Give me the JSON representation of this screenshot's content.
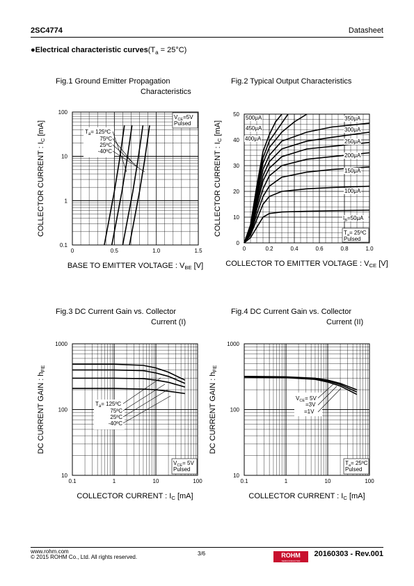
{
  "header": {
    "part": "2SC4774",
    "doc_type": "Datasheet"
  },
  "section": {
    "bullet": "●",
    "title": "Electrical characteristic curves",
    "cond": "(T",
    "cond_sub": "a",
    "cond_rest": " = 25°C)"
  },
  "footer": {
    "url": "www.rohm.com",
    "copyright": "© 2015 ROHM Co., Ltd. All rights reserved.",
    "page": "3/6",
    "revision": "20160303 - Rev.001",
    "logo": "ROHM",
    "logo_sub": "SEMICONDUCTOR"
  },
  "colors": {
    "line": "#000000",
    "grid": "#000000",
    "brand": "#c8102e"
  },
  "chart_data": [
    {
      "id": "fig1",
      "type": "line",
      "title_line1": "Fig.1 Ground Emitter Propagation",
      "title_line2": "Characteristics",
      "xlabel": {
        "pre": "BASE TO EMITTER VOLTAGE : V",
        "sub": "BE",
        "post": " [V]"
      },
      "ylabel": {
        "pre": "COLLECTOR CURRENT : I",
        "sub": "C",
        "post": " [mA]"
      },
      "xscale": "linear",
      "yscale": "log",
      "xlim": [
        0,
        1.5
      ],
      "ylim": [
        0.1,
        100
      ],
      "xticks": [
        "0",
        "0.5",
        "1.0",
        "1.5"
      ],
      "yticks": [
        "0.1",
        "1",
        "10",
        "100"
      ],
      "cond_box": [
        "V_CE=5V",
        "Pulsed"
      ],
      "legend_title": "T",
      "legend_title_sub": "a",
      "legend_labels": [
        "= 125ºC",
        "75ºC",
        "25ºC",
        "-40ºC"
      ],
      "series": [
        {
          "name": "125ºC",
          "x": [
            0.38,
            0.44,
            0.5,
            0.56,
            0.62
          ],
          "y": [
            0.1,
            0.4,
            1.6,
            8,
            50
          ]
        },
        {
          "name": "75ºC",
          "x": [
            0.47,
            0.53,
            0.59,
            0.65,
            0.71
          ],
          "y": [
            0.1,
            0.4,
            1.6,
            8,
            50
          ]
        },
        {
          "name": "25ºC",
          "x": [
            0.6,
            0.66,
            0.72,
            0.78,
            0.84
          ],
          "y": [
            0.1,
            0.4,
            1.6,
            8,
            50
          ]
        },
        {
          "name": "-40ºC",
          "x": [
            0.68,
            0.74,
            0.8,
            0.86,
            0.92
          ],
          "y": [
            0.1,
            0.4,
            1.6,
            8,
            50
          ]
        }
      ]
    },
    {
      "id": "fig2",
      "type": "line",
      "title_line1": "Fig.2 Typical Output Characteristics",
      "title_line2": "",
      "xlabel": {
        "pre": "COLLECTOR TO EMITTER VOLTAGE : V",
        "sub": "CE",
        "post": " [V]"
      },
      "ylabel": {
        "pre": "COLLECTOR CURRENT : I",
        "sub": "C",
        "post": " [mA]"
      },
      "xscale": "linear",
      "yscale": "linear",
      "xlim": [
        0,
        1.0
      ],
      "ylim": [
        0,
        50
      ],
      "xticks": [
        "0",
        "0.2",
        "0.4",
        "0.6",
        "0.8",
        "1.0"
      ],
      "yticks": [
        "0",
        "10",
        "20",
        "30",
        "40",
        "50"
      ],
      "cond_box": [
        "T_a= 25ºC",
        "Pulsed"
      ],
      "curve_labels": [
        "I_B=50μA",
        "100μA",
        "150μA",
        "200μA",
        "250μA",
        "300μA",
        "350μA",
        "400μA",
        "450μA",
        "500μA"
      ],
      "series": [
        {
          "name": "50μA",
          "x": [
            0,
            0.05,
            0.1,
            0.15,
            0.2,
            0.3,
            0.5,
            0.7,
            1.0
          ],
          "y": [
            0,
            2,
            6,
            10,
            11.4,
            12,
            12.3,
            12.5,
            12.7
          ]
        },
        {
          "name": "100μA",
          "x": [
            0,
            0.05,
            0.1,
            0.15,
            0.2,
            0.3,
            0.5,
            0.7,
            1.0
          ],
          "y": [
            0,
            3,
            9,
            15,
            18,
            20,
            21,
            21.5,
            22
          ]
        },
        {
          "name": "150μA",
          "x": [
            0,
            0.05,
            0.1,
            0.15,
            0.2,
            0.3,
            0.5,
            0.7,
            1.0
          ],
          "y": [
            0,
            3.5,
            11,
            18,
            22,
            25.5,
            27.5,
            28.5,
            29.5
          ]
        },
        {
          "name": "200μA",
          "x": [
            0,
            0.05,
            0.1,
            0.15,
            0.2,
            0.3,
            0.5,
            0.7,
            1.0
          ],
          "y": [
            0,
            4,
            13,
            21,
            26,
            30,
            32.5,
            33.5,
            35
          ]
        },
        {
          "name": "250μA",
          "x": [
            0,
            0.05,
            0.1,
            0.15,
            0.2,
            0.3,
            0.5,
            0.7,
            1.0
          ],
          "y": [
            0,
            4.5,
            14.5,
            24,
            29,
            33.5,
            36.5,
            37.5,
            39
          ]
        },
        {
          "name": "300μA",
          "x": [
            0,
            0.05,
            0.1,
            0.15,
            0.2,
            0.3,
            0.5,
            0.7,
            1.0
          ],
          "y": [
            0,
            5,
            16,
            26,
            31.5,
            36.5,
            39.5,
            41,
            43
          ]
        },
        {
          "name": "350μA",
          "x": [
            0,
            0.05,
            0.1,
            0.15,
            0.2,
            0.3,
            0.5,
            0.7,
            1.0
          ],
          "y": [
            0,
            5.5,
            17.5,
            28.5,
            34,
            39.5,
            43,
            45,
            46.5
          ]
        },
        {
          "name": "400μA",
          "x": [
            0,
            0.05,
            0.1,
            0.15,
            0.2,
            0.3,
            0.4,
            0.5
          ],
          "y": [
            0,
            6,
            19,
            31,
            37,
            43,
            47,
            50
          ]
        },
        {
          "name": "450μA",
          "x": [
            0,
            0.05,
            0.1,
            0.15,
            0.2,
            0.3,
            0.35
          ],
          "y": [
            0,
            6.5,
            20.5,
            33,
            39.5,
            46.5,
            50
          ]
        },
        {
          "name": "500μA",
          "x": [
            0,
            0.05,
            0.1,
            0.15,
            0.2,
            0.25,
            0.3
          ],
          "y": [
            0,
            7,
            22,
            35.5,
            42,
            47,
            50
          ]
        }
      ]
    },
    {
      "id": "fig3",
      "type": "line",
      "title_line1": "Fig.3 DC Current Gain vs. Collector",
      "title_line2": "Current (I)",
      "xlabel": {
        "pre": "COLLECTOR CURRENT : I",
        "sub": "C",
        "post": " [mA]"
      },
      "ylabel": {
        "pre": "DC CURRENT GAIN : h",
        "sub": "FE",
        "post": ""
      },
      "xscale": "log",
      "yscale": "log",
      "xlim": [
        0.1,
        100
      ],
      "ylim": [
        10,
        1000
      ],
      "xticks": [
        "0.1",
        "1",
        "10",
        "100"
      ],
      "yticks": [
        "10",
        "100",
        "1000"
      ],
      "cond_box": [
        "V_CE= 5V",
        "Pulsed"
      ],
      "legend_title": "T",
      "legend_title_sub": "a",
      "legend_labels": [
        "= 125ºC",
        "75ºC",
        "25ºC",
        "-40ºC"
      ],
      "series": [
        {
          "name": "125ºC",
          "x": [
            0.1,
            1,
            5,
            10,
            20,
            50
          ],
          "y": [
            490,
            490,
            470,
            430,
            370,
            280
          ]
        },
        {
          "name": "75ºC",
          "x": [
            0.1,
            1,
            5,
            10,
            20,
            50
          ],
          "y": [
            400,
            400,
            390,
            360,
            320,
            250
          ]
        },
        {
          "name": "25ºC",
          "x": [
            0.1,
            1,
            5,
            10,
            20,
            50
          ],
          "y": [
            300,
            300,
            295,
            280,
            260,
            220
          ]
        },
        {
          "name": "-40ºC",
          "x": [
            0.1,
            1,
            5,
            10,
            20,
            50
          ],
          "y": [
            210,
            210,
            205,
            200,
            190,
            175
          ]
        }
      ]
    },
    {
      "id": "fig4",
      "type": "line",
      "title_line1": "Fig.4 DC Current Gain vs. Collector",
      "title_line2": "Current (II)",
      "xlabel": {
        "pre": "COLLECTOR CURRENT : I",
        "sub": "C",
        "post": " [mA]"
      },
      "ylabel": {
        "pre": "DC CURRENT GAIN : h",
        "sub": "FE",
        "post": ""
      },
      "xscale": "log",
      "yscale": "log",
      "xlim": [
        0.1,
        100
      ],
      "ylim": [
        10,
        1000
      ],
      "xticks": [
        "0.1",
        "1",
        "10",
        "100"
      ],
      "yticks": [
        "10",
        "100",
        "1000"
      ],
      "cond_box": [
        "T_a= 25ºC",
        "Pulsed"
      ],
      "curve_labels": [
        "V_CE= 5V",
        "=3V",
        "=1V"
      ],
      "series": [
        {
          "name": "5V",
          "x": [
            0.1,
            1,
            5,
            10,
            20,
            50
          ],
          "y": [
            320,
            315,
            300,
            280,
            250,
            200
          ]
        },
        {
          "name": "3V",
          "x": [
            0.1,
            1,
            5,
            10,
            20,
            50
          ],
          "y": [
            315,
            310,
            295,
            272,
            240,
            185
          ]
        },
        {
          "name": "1V",
          "x": [
            0.1,
            1,
            5,
            10,
            20,
            50
          ],
          "y": [
            310,
            305,
            288,
            262,
            228,
            170
          ]
        }
      ]
    }
  ]
}
